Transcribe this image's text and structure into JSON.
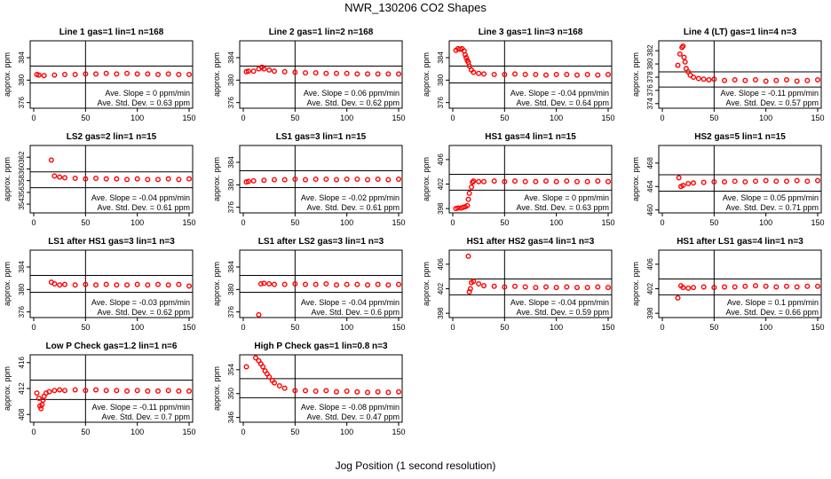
{
  "title": "NWR_130206  CO2 Shapes",
  "xlabel": "Jog Position (1 second resolution)",
  "ylabel": "approx. ppm",
  "colors": {
    "points": "#ff0000",
    "axes": "#000000",
    "background": "#ffffff"
  },
  "chart_data": [
    {
      "type": "scatter",
      "title": "Line 1 gas=1 lin=1 n=168",
      "xlim": [
        0,
        150
      ],
      "xticks": [
        0,
        50,
        100,
        150
      ],
      "ylim": [
        375,
        387
      ],
      "yticks": [
        376,
        380,
        384
      ],
      "hlines": [
        379.5,
        382.5
      ],
      "vline": 50,
      "slope_text": "Ave. Slope = 0  ppm/min",
      "std_text": "Ave. Std. Dev. = 0.63  ppm",
      "x": [
        3,
        5,
        10,
        20,
        30,
        40,
        50,
        60,
        70,
        80,
        90,
        100,
        110,
        120,
        130,
        140,
        150
      ],
      "y": [
        381,
        380.9,
        380.8,
        380.9,
        381,
        381,
        381.1,
        381.1,
        381.2,
        381.1,
        381.2,
        381.1,
        381.1,
        381,
        381.1,
        381,
        381
      ]
    },
    {
      "type": "scatter",
      "title": "Line 2 gas=1 lin=2 n=168",
      "xlim": [
        0,
        150
      ],
      "xticks": [
        0,
        50,
        100,
        150
      ],
      "ylim": [
        375,
        387
      ],
      "yticks": [
        376,
        380,
        384
      ],
      "hlines": [
        379.5,
        382.5
      ],
      "vline": 50,
      "slope_text": "Ave. Slope = 0.06  ppm/min",
      "std_text": "Ave. Std. Dev. = 0.62  ppm",
      "x": [
        3,
        5,
        10,
        15,
        18,
        20,
        25,
        30,
        40,
        50,
        60,
        70,
        80,
        90,
        100,
        110,
        120,
        130,
        140,
        150
      ],
      "y": [
        381.5,
        381.6,
        381.6,
        382,
        382.3,
        382,
        381.8,
        381.6,
        381.5,
        381.4,
        381.3,
        381.3,
        381.2,
        381.2,
        381.2,
        381.1,
        381.1,
        381.1,
        381.1,
        381.1
      ]
    },
    {
      "type": "scatter",
      "title": "Line 3 gas=1 lin=3 n=168",
      "xlim": [
        0,
        150
      ],
      "xticks": [
        0,
        50,
        100,
        150
      ],
      "ylim": [
        375,
        387
      ],
      "yticks": [
        376,
        380,
        384
      ],
      "hlines": [
        379.5,
        382.5
      ],
      "vline": 50,
      "slope_text": "Ave. Slope = -0.04  ppm/min",
      "std_text": "Ave. Std. Dev. = 0.64  ppm",
      "x": [
        3,
        5,
        7,
        9,
        11,
        12,
        13,
        14,
        15,
        16,
        18,
        20,
        25,
        30,
        40,
        50,
        60,
        70,
        80,
        90,
        100,
        110,
        120,
        130,
        140,
        150
      ],
      "y": [
        385.3,
        385.6,
        385.5,
        385.6,
        385.2,
        384.5,
        384,
        383.5,
        383.2,
        382.5,
        381.8,
        381.4,
        381.2,
        381.1,
        381,
        381,
        381.1,
        381,
        381,
        380.9,
        381,
        381,
        380.9,
        381,
        380.9,
        381
      ]
    },
    {
      "type": "scatter",
      "title": "Line 4 (LT) gas=1 lin=4 n=3",
      "xlim": [
        0,
        150
      ],
      "xticks": [
        0,
        50,
        100,
        150
      ],
      "ylim": [
        373.3,
        383.5
      ],
      "yticks": [
        374,
        376,
        378,
        380,
        382
      ],
      "hlines": [
        376.5,
        378.8
      ],
      "vline": 50,
      "slope_text": "Ave. Slope = -0.11  ppm/min",
      "std_text": "Ave. Std. Dev. = 0.57  ppm",
      "x": [
        15,
        17,
        19,
        20,
        21,
        22,
        23,
        25,
        27,
        30,
        35,
        40,
        45,
        50,
        60,
        70,
        80,
        90,
        100,
        110,
        120,
        130,
        140,
        150
      ],
      "y": [
        379.8,
        381.5,
        382.5,
        382.7,
        381,
        380.3,
        379.3,
        378.8,
        378.3,
        378,
        377.8,
        377.7,
        377.6,
        377.7,
        377.5,
        377.6,
        377.5,
        377.6,
        377.4,
        377.5,
        377.6,
        377.4,
        377.5,
        377.6
      ]
    },
    {
      "type": "scatter",
      "title": "LS2 gas=2 lin=1 n=15",
      "xlim": [
        0,
        150
      ],
      "xticks": [
        0,
        50,
        100,
        150
      ],
      "ylim": [
        352.5,
        364
      ],
      "yticks": [
        354,
        356,
        358,
        360,
        362
      ],
      "hlines": [
        356.8,
        359.5
      ],
      "vline": 50,
      "slope_text": "Ave. Slope = -0.04  ppm/min",
      "std_text": "Ave. Std. Dev. = 0.61  ppm",
      "x": [
        17,
        20,
        25,
        30,
        40,
        50,
        60,
        70,
        80,
        90,
        100,
        110,
        120,
        130,
        140,
        150
      ],
      "y": [
        361.5,
        358.8,
        358.6,
        358.5,
        358.4,
        358.3,
        358.4,
        358.3,
        358.3,
        358.2,
        358.3,
        358.2,
        358.2,
        358.3,
        358.2,
        358.3
      ]
    },
    {
      "type": "scatter",
      "title": "LS1 gas=3 lin=1 n=15",
      "xlim": [
        0,
        150
      ],
      "xticks": [
        0,
        50,
        100,
        150
      ],
      "ylim": [
        375,
        387
      ],
      "yticks": [
        376,
        380,
        384
      ],
      "hlines": [
        379.5,
        382.5
      ],
      "vline": 50,
      "slope_text": "Ave. Slope = -0.02  ppm/min",
      "std_text": "Ave. Std. Dev. = 0.61  ppm",
      "x": [
        3,
        5,
        10,
        20,
        30,
        40,
        50,
        60,
        70,
        80,
        90,
        100,
        110,
        120,
        130,
        140,
        150
      ],
      "y": [
        380.5,
        380.6,
        380.7,
        380.8,
        380.9,
        380.9,
        381,
        380.9,
        381,
        381,
        380.9,
        381,
        381,
        380.9,
        381,
        380.9,
        381
      ]
    },
    {
      "type": "scatter",
      "title": "HS1 gas=4 lin=1 n=15",
      "xlim": [
        0,
        150
      ],
      "xticks": [
        0,
        50,
        100,
        150
      ],
      "ylim": [
        397.3,
        408.3
      ],
      "yticks": [
        398,
        402,
        406
      ],
      "hlines": [
        401,
        403.6
      ],
      "vline": 50,
      "slope_text": "Ave. Slope = 0  ppm/min",
      "std_text": "Ave. Std. Dev. = 0.63  ppm",
      "x": [
        3,
        5,
        8,
        10,
        12,
        14,
        15,
        16,
        18,
        19,
        20,
        25,
        30,
        40,
        50,
        60,
        70,
        80,
        90,
        100,
        110,
        120,
        130,
        140,
        150
      ],
      "y": [
        398,
        398.1,
        398.1,
        398.2,
        398.3,
        398.5,
        399.5,
        400.5,
        401.5,
        402.3,
        402.5,
        402.4,
        402.4,
        402.5,
        402.4,
        402.5,
        402.4,
        402.4,
        402.5,
        402.4,
        402.5,
        402.4,
        402.4,
        402.5,
        402.4
      ]
    },
    {
      "type": "scatter",
      "title": "HS2 gas=5 lin=1 n=15",
      "xlim": [
        0,
        150
      ],
      "xticks": [
        0,
        50,
        100,
        150
      ],
      "ylim": [
        459.5,
        471
      ],
      "yticks": [
        460,
        464,
        468
      ],
      "hlines": [
        463.2,
        466
      ],
      "vline": 50,
      "slope_text": "Ave. Slope = 0.05  ppm/min",
      "std_text": "Ave. Std. Dev. = 0.71  ppm",
      "x": [
        16,
        18,
        20,
        25,
        30,
        40,
        50,
        60,
        70,
        80,
        90,
        100,
        110,
        120,
        130,
        140,
        150
      ],
      "y": [
        465.5,
        464,
        464.2,
        464.5,
        464.6,
        464.7,
        464.8,
        464.8,
        464.9,
        464.8,
        464.9,
        465,
        464.9,
        464.9,
        465,
        464.9,
        465
      ]
    },
    {
      "type": "scatter",
      "title": "LS1 after HS1 gas=3 lin=1 n=3",
      "xlim": [
        0,
        150
      ],
      "xticks": [
        0,
        50,
        100,
        150
      ],
      "ylim": [
        375,
        387
      ],
      "yticks": [
        376,
        380,
        384
      ],
      "hlines": [
        379.5,
        382.5
      ],
      "vline": 50,
      "slope_text": "Ave. Slope = -0.03  ppm/min",
      "std_text": "Ave. Std. Dev. = 0.62  ppm",
      "x": [
        17,
        20,
        25,
        30,
        40,
        50,
        60,
        70,
        80,
        90,
        100,
        110,
        120,
        130,
        140,
        150
      ],
      "y": [
        381.3,
        381,
        380.8,
        380.9,
        380.8,
        380.9,
        380.8,
        380.9,
        380.8,
        380.8,
        380.9,
        380.8,
        380.9,
        380.8,
        380.9,
        380.6
      ]
    },
    {
      "type": "scatter",
      "title": "LS1 after LS2 gas=3 lin=1 n=3",
      "xlim": [
        0,
        150
      ],
      "xticks": [
        0,
        50,
        100,
        150
      ],
      "ylim": [
        375,
        387
      ],
      "yticks": [
        376,
        380,
        384
      ],
      "hlines": [
        379.5,
        382.5
      ],
      "vline": 50,
      "slope_text": "Ave. Slope = -0.04  ppm/min",
      "std_text": "Ave. Std. Dev. = 0.6  ppm",
      "x": [
        15,
        17,
        20,
        25,
        30,
        40,
        50,
        60,
        70,
        80,
        90,
        100,
        110,
        120,
        130,
        140,
        150
      ],
      "y": [
        375.5,
        381,
        381.1,
        381,
        380.9,
        380.9,
        381,
        380.9,
        380.9,
        381,
        380.8,
        380.9,
        380.9,
        380.8,
        380.9,
        380.8,
        380.9
      ]
    },
    {
      "type": "scatter",
      "title": "HS1 after HS2 gas=4 lin=1 n=3",
      "xlim": [
        0,
        150
      ],
      "xticks": [
        0,
        50,
        100,
        150
      ],
      "ylim": [
        397.3,
        408.3
      ],
      "yticks": [
        398,
        402,
        406
      ],
      "hlines": [
        401,
        403.6
      ],
      "vline": 50,
      "slope_text": "Ave. Slope = -0.04  ppm/min",
      "std_text": "Ave. Std. Dev. = 0.59  ppm",
      "x": [
        15,
        16,
        17,
        18,
        20,
        25,
        30,
        40,
        50,
        60,
        70,
        80,
        90,
        100,
        110,
        120,
        130,
        140,
        150
      ],
      "y": [
        407.3,
        401.5,
        402,
        403,
        403.2,
        402.8,
        402.5,
        402.4,
        402.3,
        402.4,
        402.3,
        402.2,
        402.3,
        402.2,
        402.3,
        402.2,
        402.2,
        402.3,
        402.2
      ]
    },
    {
      "type": "scatter",
      "title": "HS1 after LS1 gas=4 lin=1 n=3",
      "xlim": [
        0,
        150
      ],
      "xticks": [
        0,
        50,
        100,
        150
      ],
      "ylim": [
        397.3,
        408.3
      ],
      "yticks": [
        398,
        402,
        406
      ],
      "hlines": [
        401,
        403.6
      ],
      "vline": 50,
      "slope_text": "Ave. Slope = 0.1  ppm/min",
      "std_text": "Ave. Std. Dev. = 0.66  ppm",
      "x": [
        15,
        18,
        20,
        25,
        30,
        40,
        50,
        60,
        70,
        80,
        90,
        100,
        110,
        120,
        130,
        140,
        150
      ],
      "y": [
        400.5,
        402.5,
        402.2,
        402.1,
        402.2,
        402.3,
        402.2,
        402.3,
        402.3,
        402.4,
        402.5,
        402.4,
        402.3,
        402.4,
        402.3,
        402.4,
        402.4
      ]
    },
    {
      "type": "scatter",
      "title": "Low P Check gas=1.2 lin=1 n=6",
      "xlim": [
        0,
        150
      ],
      "xticks": [
        0,
        50,
        100,
        150
      ],
      "ylim": [
        406.8,
        417.2
      ],
      "yticks": [
        408,
        412,
        416
      ],
      "hlines": [
        410.3,
        413.3
      ],
      "vline": 50,
      "slope_text": "Ave. Slope = -0.11  ppm/min",
      "std_text": "Ave. Std. Dev. = 0.7  ppm",
      "x": [
        3,
        5,
        6,
        7,
        8,
        9,
        10,
        12,
        15,
        20,
        25,
        30,
        40,
        50,
        60,
        70,
        80,
        90,
        100,
        110,
        120,
        130,
        140,
        150
      ],
      "y": [
        411.3,
        410.5,
        409.3,
        408.9,
        409.5,
        410.2,
        410.8,
        411.3,
        411.5,
        411.7,
        411.8,
        411.7,
        411.8,
        411.7,
        411.8,
        411.7,
        411.7,
        411.6,
        411.7,
        411.6,
        411.6,
        411.7,
        411.6,
        411.6
      ]
    },
    {
      "type": "scatter",
      "title": "High P Check gas=1 lin=0.8 n=3",
      "xlim": [
        0,
        150
      ],
      "xticks": [
        0,
        50,
        100,
        150
      ],
      "ylim": [
        345.2,
        356.5
      ],
      "yticks": [
        346,
        350,
        354
      ],
      "hlines": [
        349.3,
        352.5
      ],
      "vline": 50,
      "slope_text": "Ave. Slope = -0.08  ppm/min",
      "std_text": "Ave. Std. Dev. = 0.47  ppm",
      "x": [
        3,
        12,
        15,
        17,
        19,
        21,
        23,
        25,
        28,
        30,
        35,
        40,
        50,
        60,
        70,
        80,
        90,
        100,
        110,
        120,
        130,
        140,
        150
      ],
      "y": [
        354.5,
        356,
        355.5,
        355,
        354.5,
        353.8,
        353.3,
        352.8,
        352.2,
        351.8,
        351.3,
        350.9,
        350.5,
        350.5,
        350.4,
        350.5,
        350.3,
        350.4,
        350.3,
        350.2,
        350.3,
        350.2,
        350.3
      ]
    }
  ]
}
